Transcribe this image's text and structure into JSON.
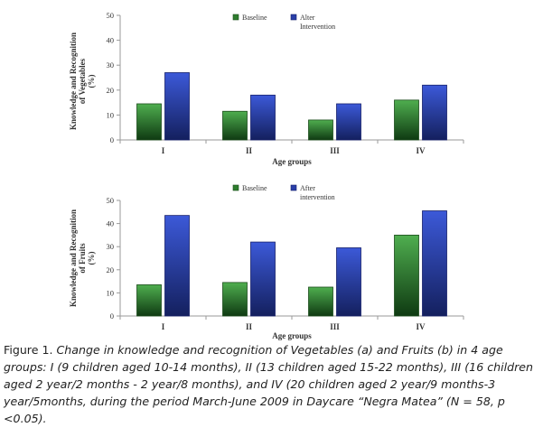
{
  "chart_data": [
    {
      "type": "bar",
      "categories": [
        "I",
        "II",
        "III",
        "IV"
      ],
      "series": [
        {
          "name": "Baseline",
          "values": [
            14.5,
            11.5,
            8,
            16
          ]
        },
        {
          "name": "Alter Intervention",
          "values": [
            27,
            18,
            14.5,
            22
          ]
        }
      ],
      "legend": [
        "Baseline",
        "Alter",
        "Intervention"
      ],
      "xlabel": "Age groups",
      "ylabel": [
        "Knowledge and Recognition",
        "of Vegetables",
        "(%)"
      ],
      "ylim": [
        0,
        50
      ],
      "yticks": [
        "0",
        "10",
        "20",
        "30",
        "40",
        "50"
      ],
      "grid": false,
      "legend_placement": "top"
    },
    {
      "type": "bar",
      "categories": [
        "I",
        "II",
        "III",
        "IV"
      ],
      "series": [
        {
          "name": "Baseline",
          "values": [
            13.5,
            14.5,
            12.5,
            35
          ]
        },
        {
          "name": "After intervention",
          "values": [
            43.5,
            32,
            29.5,
            45.5
          ]
        }
      ],
      "legend": [
        "Baseline",
        "After",
        "intervention"
      ],
      "xlabel": "Age groups",
      "ylabel": [
        "Knowledge and Recognition",
        "of Fruits",
        "(%)"
      ],
      "ylim": [
        0,
        50
      ],
      "yticks": [
        "0",
        "10",
        "20",
        "30",
        "40",
        "50"
      ],
      "grid": false,
      "legend_placement": "top"
    }
  ],
  "colors": {
    "baseline": "#2e7d2e",
    "intervention": "#2a3fa8",
    "axis": "#9a9a9a",
    "text": "#333333"
  },
  "caption": {
    "label": "Figure 1.",
    "text": "Change in knowledge and recognition of Vegetables (a) and Fruits (b) in 4 age groups: I (9 children aged 10-14 months), II (13 children aged 15-22 months), III (16 children aged 2 year/2 months - 2 year/8 months), and IV (20 children aged 2 year/9 months-3 year/5months, during the period March-June 2009 in Daycare “Negra Matea” (N = 58, p <0.05)."
  }
}
